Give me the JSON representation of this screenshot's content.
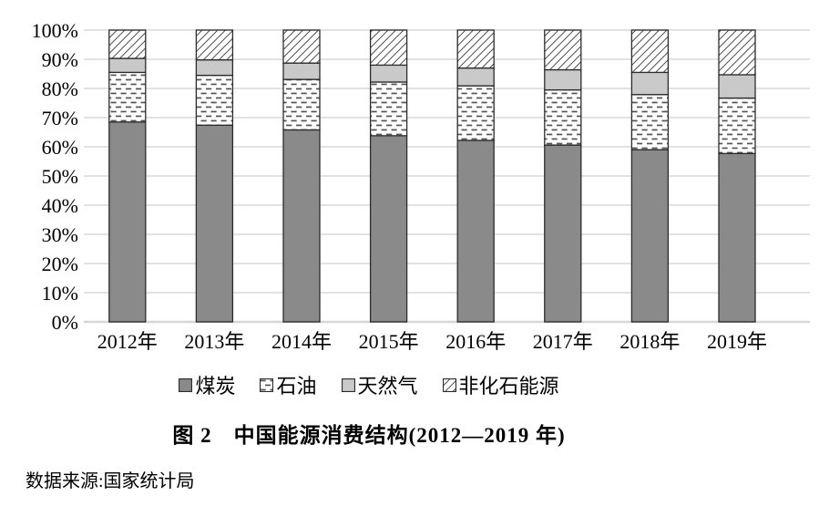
{
  "figure": {
    "caption": "图 2　中国能源消费结构(2012—2019 年)",
    "source": "数据来源:国家统计局"
  },
  "chart_data": {
    "type": "bar",
    "stacked": true,
    "title": "图 2　中国能源消费结构(2012—2019 年)",
    "source_note": "数据来源:国家统计局",
    "categories": [
      "2012年",
      "2013年",
      "2014年",
      "2015年",
      "2016年",
      "2017年",
      "2018年",
      "2019年"
    ],
    "series": [
      {
        "name": "煤炭",
        "style": "solid-dark",
        "values": [
          68.5,
          67.4,
          65.8,
          63.8,
          62.2,
          60.6,
          59.0,
          57.7
        ]
      },
      {
        "name": "石油",
        "style": "dash-pattern",
        "values": [
          17.0,
          17.1,
          17.3,
          18.4,
          18.7,
          18.9,
          18.9,
          19.0
        ]
      },
      {
        "name": "天然气",
        "style": "solid-light",
        "values": [
          4.8,
          5.3,
          5.6,
          5.8,
          6.1,
          6.9,
          7.6,
          8.0
        ]
      },
      {
        "name": "非化石能源",
        "style": "diagonal-hatch",
        "values": [
          9.7,
          10.2,
          11.3,
          12.0,
          13.0,
          13.6,
          14.5,
          15.3
        ]
      }
    ],
    "unit": "percent",
    "ylim": [
      0,
      100
    ],
    "ytick_step": 10,
    "ytick_labels": [
      "0%",
      "10%",
      "20%",
      "30%",
      "40%",
      "50%",
      "60%",
      "70%",
      "80%",
      "90%",
      "100%"
    ],
    "xlabel": "",
    "ylabel": "",
    "grid": true,
    "legend_position": "bottom"
  },
  "colors": {
    "coal_fill": "#8a8a8a",
    "gas_fill": "#c9c9c9",
    "pattern_ink": "#555555",
    "hatch_ink": "#3c3c3c",
    "segment_border": "#2b2b2b",
    "gridline": "#dedede",
    "baseline": "#d6d6d6",
    "text": "#000000",
    "background": "#ffffff"
  }
}
